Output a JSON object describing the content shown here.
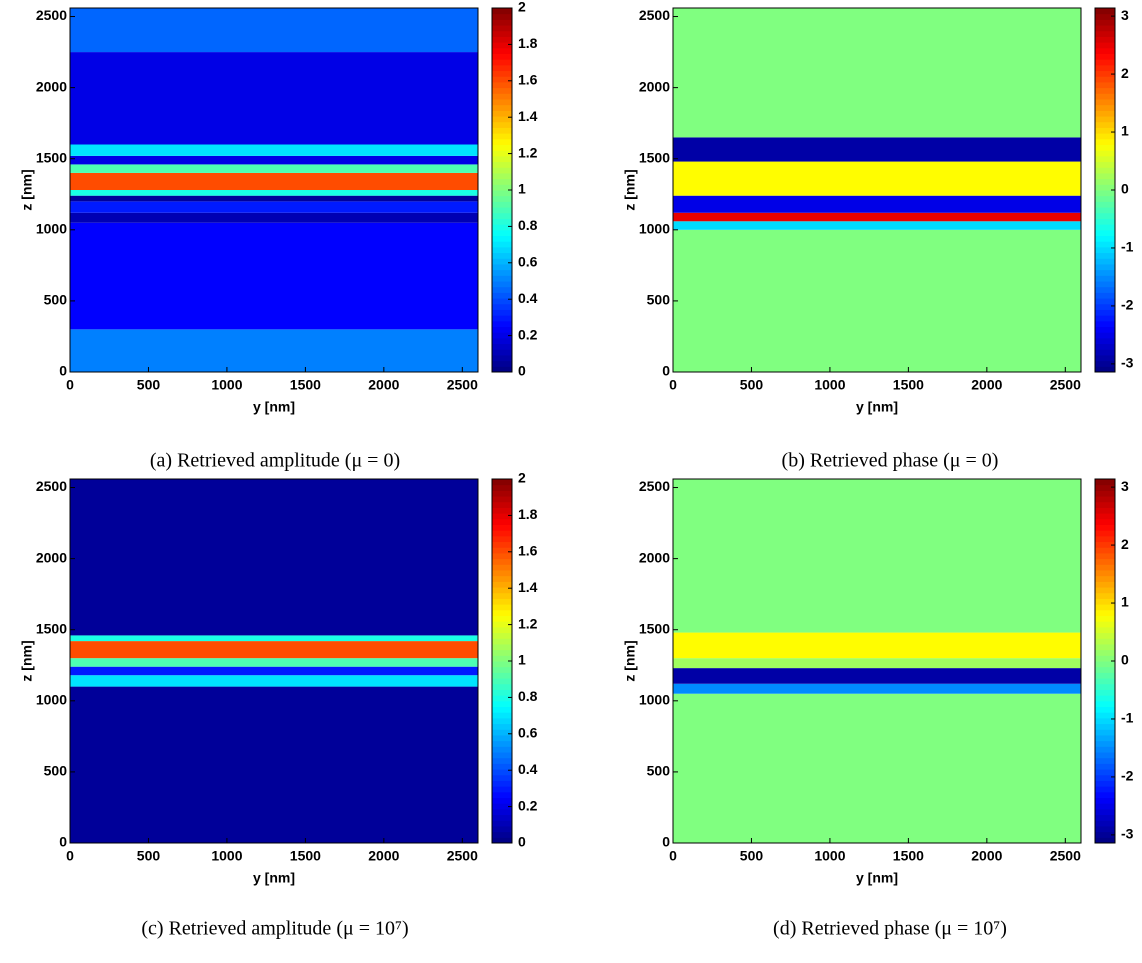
{
  "chart_data": [
    {
      "type": "heatmap",
      "caption": "(a)  Retrieved amplitude (μ = 0)",
      "xlabel": "y [nm]",
      "ylabel": "z [nm]",
      "xlim": [
        0,
        2600
      ],
      "ylim": [
        0,
        2560
      ],
      "xticks": [
        0,
        500,
        1000,
        1500,
        2000,
        2500
      ],
      "yticks": [
        0,
        500,
        1000,
        1500,
        2000,
        2500
      ],
      "z_edges": [
        0,
        300,
        1050,
        1120,
        1200,
        1240,
        1280,
        1400,
        1460,
        1520,
        1600,
        2250,
        2560
      ],
      "values": [
        0.5,
        0.25,
        0.1,
        0.3,
        0.05,
        0.8,
        1.6,
        0.9,
        0.2,
        0.7,
        0.2,
        0.45
      ],
      "clim": [
        0,
        2
      ],
      "cticks": [
        0,
        0.2,
        0.4,
        0.6,
        0.8,
        1,
        1.2,
        1.4,
        1.6,
        1.8,
        2
      ]
    },
    {
      "type": "heatmap",
      "caption": "(b)  Retrieved phase (μ = 0)",
      "xlabel": "y [nm]",
      "ylabel": "z [nm]",
      "xlim": [
        0,
        2600
      ],
      "ylim": [
        0,
        2560
      ],
      "xticks": [
        0,
        500,
        1000,
        1500,
        2000,
        2500
      ],
      "yticks": [
        0,
        500,
        1000,
        1500,
        2000,
        2500
      ],
      "z_edges": [
        0,
        1000,
        1060,
        1120,
        1240,
        1480,
        1650,
        2560
      ],
      "values": [
        0,
        -1,
        2.5,
        -2.5,
        0.8,
        -2.9,
        0
      ],
      "clim": [
        -3.14,
        3.14
      ],
      "cticks": [
        -3,
        -2,
        -1,
        0,
        1,
        2,
        3
      ]
    },
    {
      "type": "heatmap",
      "caption": "(c)  Retrieved amplitude (μ = 10⁷)",
      "xlabel": "y [nm]",
      "ylabel": "z [nm]",
      "xlim": [
        0,
        2600
      ],
      "ylim": [
        0,
        2560
      ],
      "xticks": [
        0,
        500,
        1000,
        1500,
        2000,
        2500
      ],
      "yticks": [
        0,
        500,
        1000,
        1500,
        2000,
        2500
      ],
      "z_edges": [
        0,
        1100,
        1180,
        1240,
        1300,
        1420,
        1460,
        2560
      ],
      "values": [
        0.05,
        0.7,
        0.3,
        0.9,
        1.6,
        0.8,
        0.05
      ],
      "clim": [
        0,
        2
      ],
      "cticks": [
        0,
        0.2,
        0.4,
        0.6,
        0.8,
        1,
        1.2,
        1.4,
        1.6,
        1.8,
        2
      ]
    },
    {
      "type": "heatmap",
      "caption": "(d)  Retrieved phase (μ = 10⁷)",
      "xlabel": "y [nm]",
      "ylabel": "z [nm]",
      "xlim": [
        0,
        2600
      ],
      "ylim": [
        0,
        2560
      ],
      "xticks": [
        0,
        500,
        1000,
        1500,
        2000,
        2500
      ],
      "yticks": [
        0,
        500,
        1000,
        1500,
        2000,
        2500
      ],
      "z_edges": [
        0,
        1050,
        1120,
        1230,
        1300,
        1480,
        2560
      ],
      "values": [
        0,
        -1.5,
        -2.9,
        0.2,
        0.8,
        0
      ],
      "clim": [
        -3.14,
        3.14
      ],
      "cticks": [
        -3,
        -2,
        -1,
        0,
        1,
        2,
        3
      ]
    }
  ]
}
